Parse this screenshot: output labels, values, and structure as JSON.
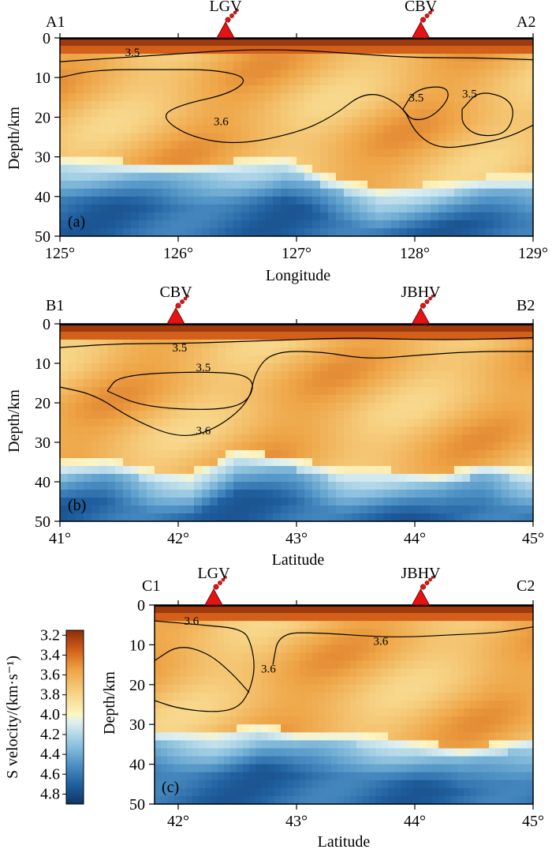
{
  "chart_data": {
    "type": "heatmap",
    "colorbar": {
      "label": "S velocity/(km·s⁻¹)",
      "ticks": [
        "3.2",
        "3.4",
        "3.6",
        "3.8",
        "4.0",
        "4.2",
        "4.4",
        "4.6",
        "4.8"
      ],
      "range": [
        3.15,
        4.9
      ],
      "colors": [
        {
          "value": 3.15,
          "color": "#8e2d0a"
        },
        {
          "value": 3.35,
          "color": "#d2601a"
        },
        {
          "value": 3.55,
          "color": "#eea446"
        },
        {
          "value": 3.8,
          "color": "#f7d588"
        },
        {
          "value": 4.0,
          "color": "#fdf5c4"
        },
        {
          "value": 4.08,
          "color": "#dceff2"
        },
        {
          "value": 4.3,
          "color": "#8fc3df"
        },
        {
          "value": 4.5,
          "color": "#4f92c5"
        },
        {
          "value": 4.7,
          "color": "#2160a0"
        },
        {
          "value": 4.9,
          "color": "#0c3566"
        }
      ]
    },
    "panels": [
      {
        "id": "a",
        "tag": "(a)",
        "left_label": "A1",
        "right_label": "A2",
        "xlabel": "Longitude",
        "ylabel": "Depth/km",
        "xlim": [
          125,
          129
        ],
        "ylim": [
          0,
          50
        ],
        "x_ticks": [
          "125°",
          "126°",
          "127°",
          "128°",
          "129°"
        ],
        "y_ticks": [
          "0",
          "10",
          "20",
          "30",
          "40",
          "50"
        ],
        "volcanoes": [
          {
            "name": "LGV",
            "x": 126.4
          },
          {
            "name": "CBV",
            "x": 128.05
          }
        ],
        "moho_depth": [
          {
            "x": 125.0,
            "depth": 33
          },
          {
            "x": 125.5,
            "depth": 34
          },
          {
            "x": 126.0,
            "depth": 35
          },
          {
            "x": 126.5,
            "depth": 34
          },
          {
            "x": 126.9,
            "depth": 33
          },
          {
            "x": 127.3,
            "depth": 38
          },
          {
            "x": 127.7,
            "depth": 41
          },
          {
            "x": 128.1,
            "depth": 40
          },
          {
            "x": 128.6,
            "depth": 38
          },
          {
            "x": 129.0,
            "depth": 38
          }
        ],
        "contours": [
          {
            "label": "3.5",
            "label_at": [
              125.55,
              4.6
            ],
            "points": [
              [
                125,
                6
              ],
              [
                125.5,
                5
              ],
              [
                126,
                4
              ],
              [
                126.5,
                3
              ],
              [
                127,
                3
              ],
              [
                127.5,
                4
              ],
              [
                128,
                5
              ],
              [
                128.5,
                5
              ],
              [
                129,
                5.5
              ]
            ]
          },
          {
            "label": "3.6",
            "label_at": [
              126.3,
              22
            ],
            "points": [
              [
                125,
                10
              ],
              [
                125.3,
                8
              ],
              [
                125.9,
                8
              ],
              [
                126.3,
                8
              ],
              [
                126.6,
                10
              ],
              [
                126.45,
                14
              ],
              [
                126.0,
                17
              ],
              [
                125.85,
                20
              ],
              [
                126.1,
                25
              ],
              [
                126.5,
                27
              ],
              [
                127.0,
                24
              ],
              [
                127.3,
                20
              ],
              [
                127.6,
                13
              ],
              [
                127.9,
                17
              ],
              [
                128.0,
                24
              ],
              [
                128.2,
                28
              ],
              [
                128.5,
                27
              ],
              [
                128.8,
                25
              ],
              [
                129,
                22
              ]
            ]
          },
          {
            "label": "3.5",
            "label_at": [
              127.95,
              16
            ],
            "points": [
              [
                127.9,
                18
              ],
              [
                128.0,
                13
              ],
              [
                128.25,
                12
              ],
              [
                128.3,
                15
              ],
              [
                128.15,
                20
              ],
              [
                127.98,
                21
              ],
              [
                127.9,
                18
              ]
            ]
          },
          {
            "label": "3.5",
            "label_at": [
              128.4,
              15
            ],
            "points": [
              [
                128.4,
                18
              ],
              [
                128.55,
                13
              ],
              [
                128.85,
                16
              ],
              [
                128.8,
                24
              ],
              [
                128.55,
                25
              ],
              [
                128.4,
                22
              ],
              [
                128.4,
                18
              ]
            ]
          }
        ]
      },
      {
        "id": "b",
        "tag": "(b)",
        "left_label": "B1",
        "right_label": "B2",
        "xlabel": "Latitude",
        "ylabel": "Depth/km",
        "xlim": [
          41,
          45
        ],
        "ylim": [
          0,
          50
        ],
        "x_ticks": [
          "41°",
          "42°",
          "43°",
          "44°",
          "45°"
        ],
        "y_ticks": [
          "0",
          "10",
          "20",
          "30",
          "40",
          "50"
        ],
        "volcanoes": [
          {
            "name": "CBV",
            "x": 41.98
          },
          {
            "name": "JBHV",
            "x": 44.05
          }
        ],
        "moho_depth": [
          {
            "x": 41.0,
            "depth": 38
          },
          {
            "x": 41.4,
            "depth": 37
          },
          {
            "x": 41.8,
            "depth": 40
          },
          {
            "x": 42.1,
            "depth": 41
          },
          {
            "x": 42.5,
            "depth": 35
          },
          {
            "x": 43.0,
            "depth": 37
          },
          {
            "x": 43.4,
            "depth": 40
          },
          {
            "x": 43.8,
            "depth": 40
          },
          {
            "x": 44.2,
            "depth": 41
          },
          {
            "x": 44.6,
            "depth": 38
          },
          {
            "x": 45.0,
            "depth": 40
          }
        ],
        "contours": [
          {
            "label": "3.5",
            "label_at": [
              41.95,
              7
            ],
            "points": [
              [
                41,
                6
              ],
              [
                41.5,
                5
              ],
              [
                42,
                5
              ],
              [
                42.5,
                4.5
              ],
              [
                43,
                4
              ],
              [
                43.5,
                3.5
              ],
              [
                44,
                4
              ],
              [
                44.5,
                4
              ],
              [
                45,
                3.5
              ]
            ]
          },
          {
            "label": "3.6",
            "label_at": [
              42.15,
              28
            ],
            "points": [
              [
                41,
                16
              ],
              [
                41.3,
                18
              ],
              [
                41.6,
                24
              ],
              [
                42.0,
                29
              ],
              [
                42.3,
                27
              ],
              [
                42.6,
                20
              ],
              [
                42.65,
                12
              ],
              [
                42.8,
                7
              ],
              [
                43.2,
                7
              ],
              [
                43.6,
                9
              ],
              [
                44,
                8
              ],
              [
                44.5,
                7
              ],
              [
                45,
                7
              ]
            ]
          },
          {
            "label": "3.5",
            "label_at": [
              42.15,
              12
            ],
            "points": [
              [
                41.4,
                17
              ],
              [
                41.5,
                13
              ],
              [
                42.2,
                12
              ],
              [
                42.65,
                13
              ],
              [
                42.6,
                20
              ],
              [
                42.3,
                22
              ],
              [
                41.7,
                21
              ],
              [
                41.4,
                17
              ]
            ]
          }
        ]
      },
      {
        "id": "c",
        "tag": "(c)",
        "left_label": "C1",
        "right_label": "C2",
        "xlabel": "Latitude",
        "ylabel": "Depth/km",
        "xlim": [
          41.8,
          45
        ],
        "ylim": [
          0,
          50
        ],
        "x_ticks": [
          "42°",
          "43°",
          "44°",
          "45°"
        ],
        "y_ticks": [
          "0",
          "10",
          "20",
          "30",
          "40",
          "50"
        ],
        "volcanoes": [
          {
            "name": "LGV",
            "x": 42.3
          },
          {
            "name": "JBHV",
            "x": 44.05
          }
        ],
        "moho_depth": [
          {
            "x": 41.8,
            "depth": 34
          },
          {
            "x": 42.3,
            "depth": 35
          },
          {
            "x": 42.7,
            "depth": 33
          },
          {
            "x": 43.0,
            "depth": 35
          },
          {
            "x": 43.5,
            "depth": 35
          },
          {
            "x": 44.0,
            "depth": 37
          },
          {
            "x": 44.4,
            "depth": 39
          },
          {
            "x": 44.8,
            "depth": 37
          },
          {
            "x": 45.0,
            "depth": 36
          }
        ],
        "contours": [
          {
            "label": "3.6",
            "label_at": [
              42.05,
              5
            ],
            "points": [
              [
                41.8,
                4
              ],
              [
                42.2,
                5
              ],
              [
                42.55,
                6
              ],
              [
                42.62,
                10
              ],
              [
                42.65,
                16
              ],
              [
                42.6,
                22
              ],
              [
                42.5,
                26
              ],
              [
                42.3,
                27
              ],
              [
                42.0,
                26
              ],
              [
                41.8,
                24
              ]
            ]
          },
          {
            "label": "3.6",
            "label_at": [
              42.7,
              17
            ],
            "points": [
              [
                41.8,
                14
              ],
              [
                42.0,
                10
              ],
              [
                42.25,
                12
              ],
              [
                42.45,
                17
              ],
              [
                42.6,
                22
              ]
            ]
          },
          {
            "label": "3.6",
            "label_at": [
              43.65,
              10
            ],
            "points": [
              [
                42.8,
                15
              ],
              [
                42.85,
                7
              ],
              [
                43.2,
                7
              ],
              [
                43.7,
                8
              ],
              [
                44.0,
                8
              ],
              [
                44.3,
                7.5
              ],
              [
                44.7,
                7
              ],
              [
                45.0,
                5.5
              ]
            ]
          }
        ]
      }
    ]
  }
}
